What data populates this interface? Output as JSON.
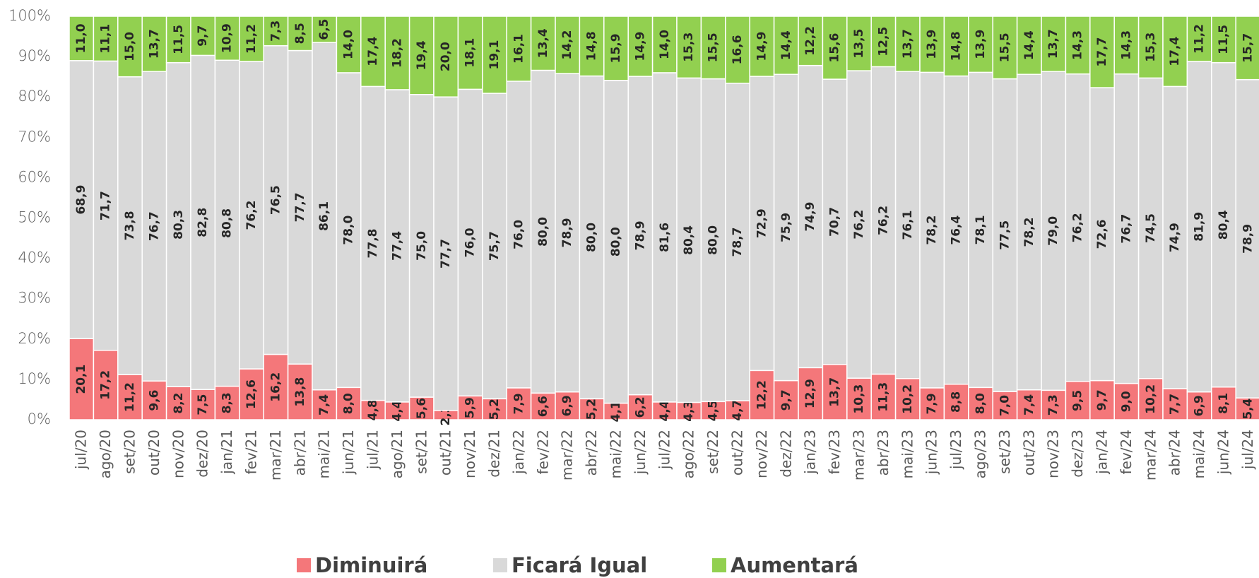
{
  "chart_data": {
    "type": "stacked_bar_percent",
    "categories": [
      "jul/20",
      "ago/20",
      "set/20",
      "out/20",
      "nov/20",
      "dez/20",
      "jan/21",
      "fev/21",
      "mar/21",
      "abr/21",
      "mai/21",
      "jun/21",
      "jul/21",
      "ago/21",
      "set/21",
      "out/21",
      "nov/21",
      "dez/21",
      "jan/22",
      "fev/22",
      "mar/22",
      "abr/22",
      "mai/22",
      "jun/22",
      "jul/22",
      "ago/22",
      "set/22",
      "out/22",
      "nov/22",
      "dez/22",
      "jan/23",
      "fev/23",
      "mar/23",
      "abr/23",
      "mai/23",
      "jun/23",
      "jul/23",
      "ago/23",
      "set/23",
      "out/23",
      "nov/23",
      "dez/23",
      "jan/24",
      "fev/24",
      "mar/24",
      "abr/24",
      "mai/24",
      "jun/24",
      "jul/24"
    ],
    "series": [
      {
        "name": "Diminuirá",
        "color": "#f4777a",
        "values": [
          20.1,
          17.2,
          11.2,
          9.6,
          8.2,
          7.5,
          8.3,
          12.6,
          16.2,
          13.8,
          7.4,
          8.0,
          4.8,
          4.4,
          5.6,
          2.3,
          5.9,
          5.2,
          7.9,
          6.6,
          6.9,
          5.2,
          4.1,
          6.2,
          4.4,
          4.3,
          4.5,
          4.7,
          12.2,
          9.7,
          12.9,
          13.7,
          10.3,
          11.3,
          10.2,
          7.9,
          8.8,
          8.0,
          7.0,
          7.4,
          7.3,
          9.5,
          9.7,
          9.0,
          10.2,
          7.7,
          6.9,
          8.1,
          5.4
        ],
        "value_labels": [
          "20,1",
          "17,2",
          "11,2",
          "9,6",
          "8,2",
          "7,5",
          "8,3",
          "12,6",
          "16,2",
          "13,8",
          "7,4",
          "8,0",
          "4,8",
          "4,4",
          "5,6",
          "2,3",
          "5,9",
          "5,2",
          "7,9",
          "6,6",
          "6,9",
          "5,2",
          "4,1",
          "6,2",
          "4,4",
          "4,3",
          "4,5",
          "4,7",
          "12,2",
          "9,7",
          "12,9",
          "13,7",
          "10,3",
          "11,3",
          "10,2",
          "7,9",
          "8,8",
          "8,0",
          "7,0",
          "7,4",
          "7,3",
          "9,5",
          "9,7",
          "9,0",
          "10,2",
          "7,7",
          "6,9",
          "8,1",
          "5,4"
        ]
      },
      {
        "name": "Ficará Igual",
        "color": "#d9d9d9",
        "values": [
          68.9,
          71.7,
          73.8,
          76.7,
          80.3,
          82.8,
          80.8,
          76.2,
          76.5,
          77.7,
          86.1,
          78.0,
          77.8,
          77.4,
          75.0,
          77.7,
          76.0,
          75.7,
          76.0,
          80.0,
          78.9,
          80.0,
          80.0,
          78.9,
          81.6,
          80.4,
          80.0,
          78.7,
          72.9,
          75.9,
          74.9,
          70.7,
          76.2,
          76.2,
          76.1,
          78.2,
          76.4,
          78.1,
          77.5,
          78.2,
          79.0,
          76.2,
          72.6,
          76.7,
          74.5,
          74.9,
          81.9,
          80.4,
          78.9
        ],
        "value_labels": [
          "68,9",
          "71,7",
          "73,8",
          "76,7",
          "80,3",
          "82,8",
          "80,8",
          "76,2",
          "76,5",
          "77,7",
          "86,1",
          "78,0",
          "77,8",
          "77,4",
          "75,0",
          "77,7",
          "76,0",
          "75,7",
          "76,0",
          "80,0",
          "78,9",
          "80,0",
          "80,0",
          "78,9",
          "81,6",
          "80,4",
          "80,0",
          "78,7",
          "72,9",
          "75,9",
          "74,9",
          "70,7",
          "76,2",
          "76,2",
          "76,1",
          "78,2",
          "76,4",
          "78,1",
          "77,5",
          "78,2",
          "79,0",
          "76,2",
          "72,6",
          "76,7",
          "74,5",
          "74,9",
          "81,9",
          "80,4",
          "78,9"
        ]
      },
      {
        "name": "Aumentará",
        "color": "#92d050",
        "values": [
          11.0,
          11.1,
          15.0,
          13.7,
          11.5,
          9.7,
          10.9,
          11.2,
          7.3,
          8.5,
          6.5,
          14.0,
          17.4,
          18.2,
          19.4,
          20.0,
          18.1,
          19.1,
          16.1,
          13.4,
          14.2,
          14.8,
          15.9,
          14.9,
          14.0,
          15.3,
          15.5,
          16.6,
          14.9,
          14.4,
          12.2,
          15.6,
          13.5,
          12.5,
          13.7,
          13.9,
          14.8,
          13.9,
          15.5,
          14.4,
          13.7,
          14.3,
          17.7,
          14.3,
          15.3,
          17.4,
          11.2,
          11.5,
          15.7
        ],
        "value_labels": [
          "11,0",
          "11,1",
          "15,0",
          "13,7",
          "11,5",
          "9,7",
          "10,9",
          "11,2",
          "7,3",
          "8,5",
          "6,5",
          "14,0",
          "17,4",
          "18,2",
          "19,4",
          "20,0",
          "18,1",
          "19,1",
          "16,1",
          "13,4",
          "14,2",
          "14,8",
          "15,9",
          "14,9",
          "14,0",
          "15,3",
          "15,5",
          "16,6",
          "14,9",
          "14,4",
          "12,2",
          "15,6",
          "13,5",
          "12,5",
          "13,7",
          "13,9",
          "14,8",
          "13,9",
          "15,5",
          "14,4",
          "13,7",
          "14,3",
          "17,7",
          "14,3",
          "15,3",
          "17,4",
          "11,2",
          "11,5",
          "15,7"
        ]
      }
    ],
    "ylim": [
      0,
      100
    ],
    "yticks": [
      {
        "value": 0,
        "label": "0%"
      },
      {
        "value": 10,
        "label": "10%"
      },
      {
        "value": 20,
        "label": "20%"
      },
      {
        "value": 30,
        "label": "30%"
      },
      {
        "value": 40,
        "label": "40%"
      },
      {
        "value": 50,
        "label": "50%"
      },
      {
        "value": 60,
        "label": "60%"
      },
      {
        "value": 70,
        "label": "70%"
      },
      {
        "value": 80,
        "label": "80%"
      },
      {
        "value": 90,
        "label": "90%"
      },
      {
        "value": 100,
        "label": "100%"
      }
    ],
    "legend": "bottom"
  }
}
